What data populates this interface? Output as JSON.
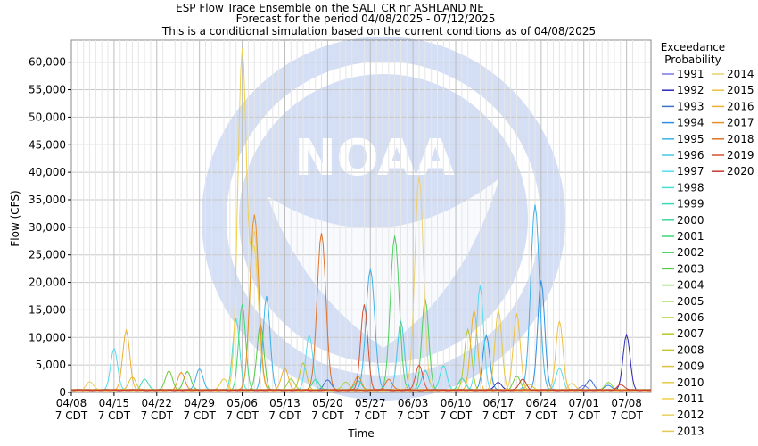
{
  "chart_data": {
    "type": "line",
    "title": "ESP Flow Trace Ensemble on the SALT CR nr ASHLAND NE",
    "subtitle1": "Forecast for the period 04/08/2025 - 07/12/2025",
    "subtitle2": "This is a conditional simulation based on the current conditions as of 04/08/2025",
    "xlabel": "Time",
    "ylabel": "Flow (CFS)",
    "ylim": [
      0,
      64000
    ],
    "xlim_days": [
      0,
      95
    ],
    "x_tick_labels": [
      {
        "date": "04/08",
        "tz": "7 CDT"
      },
      {
        "date": "04/15",
        "tz": "7 CDT"
      },
      {
        "date": "04/22",
        "tz": "7 CDT"
      },
      {
        "date": "04/29",
        "tz": "7 CDT"
      },
      {
        "date": "05/06",
        "tz": "7 CDT"
      },
      {
        "date": "05/13",
        "tz": "7 CDT"
      },
      {
        "date": "05/20",
        "tz": "7 CDT"
      },
      {
        "date": "05/27",
        "tz": "7 CDT"
      },
      {
        "date": "06/03",
        "tz": "7 CDT"
      },
      {
        "date": "06/10",
        "tz": "7 CDT"
      },
      {
        "date": "06/17",
        "tz": "7 CDT"
      },
      {
        "date": "06/24",
        "tz": "7 CDT"
      },
      {
        "date": "07/01",
        "tz": "7 CDT"
      },
      {
        "date": "07/08",
        "tz": "7 CDT"
      }
    ],
    "y_ticks": [
      {
        "value": 0,
        "label": "0"
      },
      {
        "value": 5000,
        "label": "5,000"
      },
      {
        "value": 10000,
        "label": "10,000"
      },
      {
        "value": 15000,
        "label": "15,000"
      },
      {
        "value": 20000,
        "label": "20,000"
      },
      {
        "value": 25000,
        "label": "25,000"
      },
      {
        "value": 30000,
        "label": "30,000"
      },
      {
        "value": 35000,
        "label": "35,000"
      },
      {
        "value": 40000,
        "label": "40,000"
      },
      {
        "value": 45000,
        "label": "45,000"
      },
      {
        "value": 50000,
        "label": "50,000"
      },
      {
        "value": 55000,
        "label": "55,000"
      },
      {
        "value": 60000,
        "label": "60,000"
      }
    ],
    "grid": true,
    "legend_title": [
      "Exceedance",
      "Probability"
    ],
    "legend_placement": "right",
    "background_watermark": "NOAA",
    "series": [
      {
        "name": "1991",
        "color": "#7878e6",
        "peaks": [
          [
            84,
            800
          ]
        ]
      },
      {
        "name": "1992",
        "color": "#2a2ab4",
        "peaks": [
          [
            91,
            10000
          ],
          [
            70,
            1500
          ]
        ]
      },
      {
        "name": "1993",
        "color": "#3a72c8",
        "peaks": [
          [
            42,
            2000
          ],
          [
            85,
            1800
          ]
        ]
      },
      {
        "name": "1994",
        "color": "#2f8ee6",
        "peaks": [
          [
            68,
            10000
          ],
          [
            77,
            20000
          ],
          [
            88,
            800
          ]
        ]
      },
      {
        "name": "1995",
        "color": "#3db0e8",
        "peaks": [
          [
            32,
            17000
          ],
          [
            49,
            22000
          ],
          [
            76,
            33700
          ],
          [
            21,
            4000
          ]
        ]
      },
      {
        "name": "1996",
        "color": "#48c6e6",
        "peaks": [
          [
            54,
            12500
          ],
          [
            58,
            3500
          ]
        ]
      },
      {
        "name": "1997",
        "color": "#54dcee",
        "peaks": [
          [
            7,
            7500
          ],
          [
            39,
            10000
          ],
          [
            67,
            19000
          ],
          [
            80,
            4000
          ]
        ]
      },
      {
        "name": "1998",
        "color": "#43e0d4",
        "peaks": [
          [
            27,
            13000
          ],
          [
            61,
            4500
          ]
        ]
      },
      {
        "name": "1999",
        "color": "#3ad8b8",
        "peaks": [
          [
            12,
            2000
          ],
          [
            47,
            1800
          ]
        ]
      },
      {
        "name": "2000",
        "color": "#40d89a",
        "peaks": [
          [
            64,
            2200
          ]
        ]
      },
      {
        "name": "2001",
        "color": "#3ed878",
        "peaks": [
          [
            28,
            15500
          ],
          [
            40,
            2000
          ]
        ]
      },
      {
        "name": "2002",
        "color": "#4cd060",
        "peaks": [
          [
            53,
            28000
          ],
          [
            58,
            16500
          ]
        ]
      },
      {
        "name": "2003",
        "color": "#58c848",
        "peaks": [
          [
            31,
            12000
          ],
          [
            19,
            3500
          ]
        ]
      },
      {
        "name": "2004",
        "color": "#6cc838",
        "peaks": [
          [
            16,
            3500
          ],
          [
            73,
            2500
          ]
        ]
      },
      {
        "name": "2005",
        "color": "#90d030",
        "peaks": [
          [
            36,
            2000
          ],
          [
            88,
            1500
          ]
        ]
      },
      {
        "name": "2006",
        "color": "#a8d430",
        "peaks": [
          [
            45,
            1500
          ]
        ]
      },
      {
        "name": "2007",
        "color": "#b8c828",
        "peaks": [
          [
            65,
            11000
          ]
        ]
      },
      {
        "name": "2008",
        "color": "#c8c030",
        "peaks": [
          [
            38,
            5000
          ]
        ]
      },
      {
        "name": "2009",
        "color": "#d8c038",
        "peaks": [
          [
            10,
            2500
          ],
          [
            75,
            1000
          ]
        ]
      },
      {
        "name": "2010",
        "color": "#e6c840",
        "peaks": [
          [
            70,
            14500
          ],
          [
            25,
            2000
          ]
        ]
      },
      {
        "name": "2011",
        "color": "#f0d048",
        "peaks": [
          [
            28,
            61500
          ],
          [
            30,
            25000
          ]
        ]
      },
      {
        "name": "2012",
        "color": "#e8d060",
        "peaks": [
          [
            3,
            1500
          ]
        ]
      },
      {
        "name": "2013",
        "color": "#e6c858",
        "peaks": [
          [
            82,
            1200
          ]
        ]
      },
      {
        "name": "2014",
        "color": "#ecd070",
        "peaks": [
          [
            57,
            39000
          ],
          [
            30,
            29000
          ]
        ]
      },
      {
        "name": "2015",
        "color": "#f0c040",
        "peaks": [
          [
            73,
            14000
          ],
          [
            80,
            12500
          ]
        ]
      },
      {
        "name": "2016",
        "color": "#f0b030",
        "peaks": [
          [
            9,
            11000
          ],
          [
            66,
            14500
          ],
          [
            35,
            4000
          ]
        ]
      },
      {
        "name": "2017",
        "color": "#e89028",
        "peaks": [
          [
            30,
            32000
          ],
          [
            47,
            2500
          ],
          [
            18,
            3200
          ]
        ]
      },
      {
        "name": "2018",
        "color": "#e07028",
        "peaks": [
          [
            41,
            28500
          ],
          [
            52,
            2000
          ]
        ]
      },
      {
        "name": "2019",
        "color": "#d85030",
        "peaks": [
          [
            48,
            15500
          ],
          [
            57,
            4500
          ]
        ]
      },
      {
        "name": "2020",
        "color": "#c83830",
        "peaks": [
          [
            74,
            2000
          ],
          [
            90,
            1000
          ]
        ]
      }
    ]
  }
}
